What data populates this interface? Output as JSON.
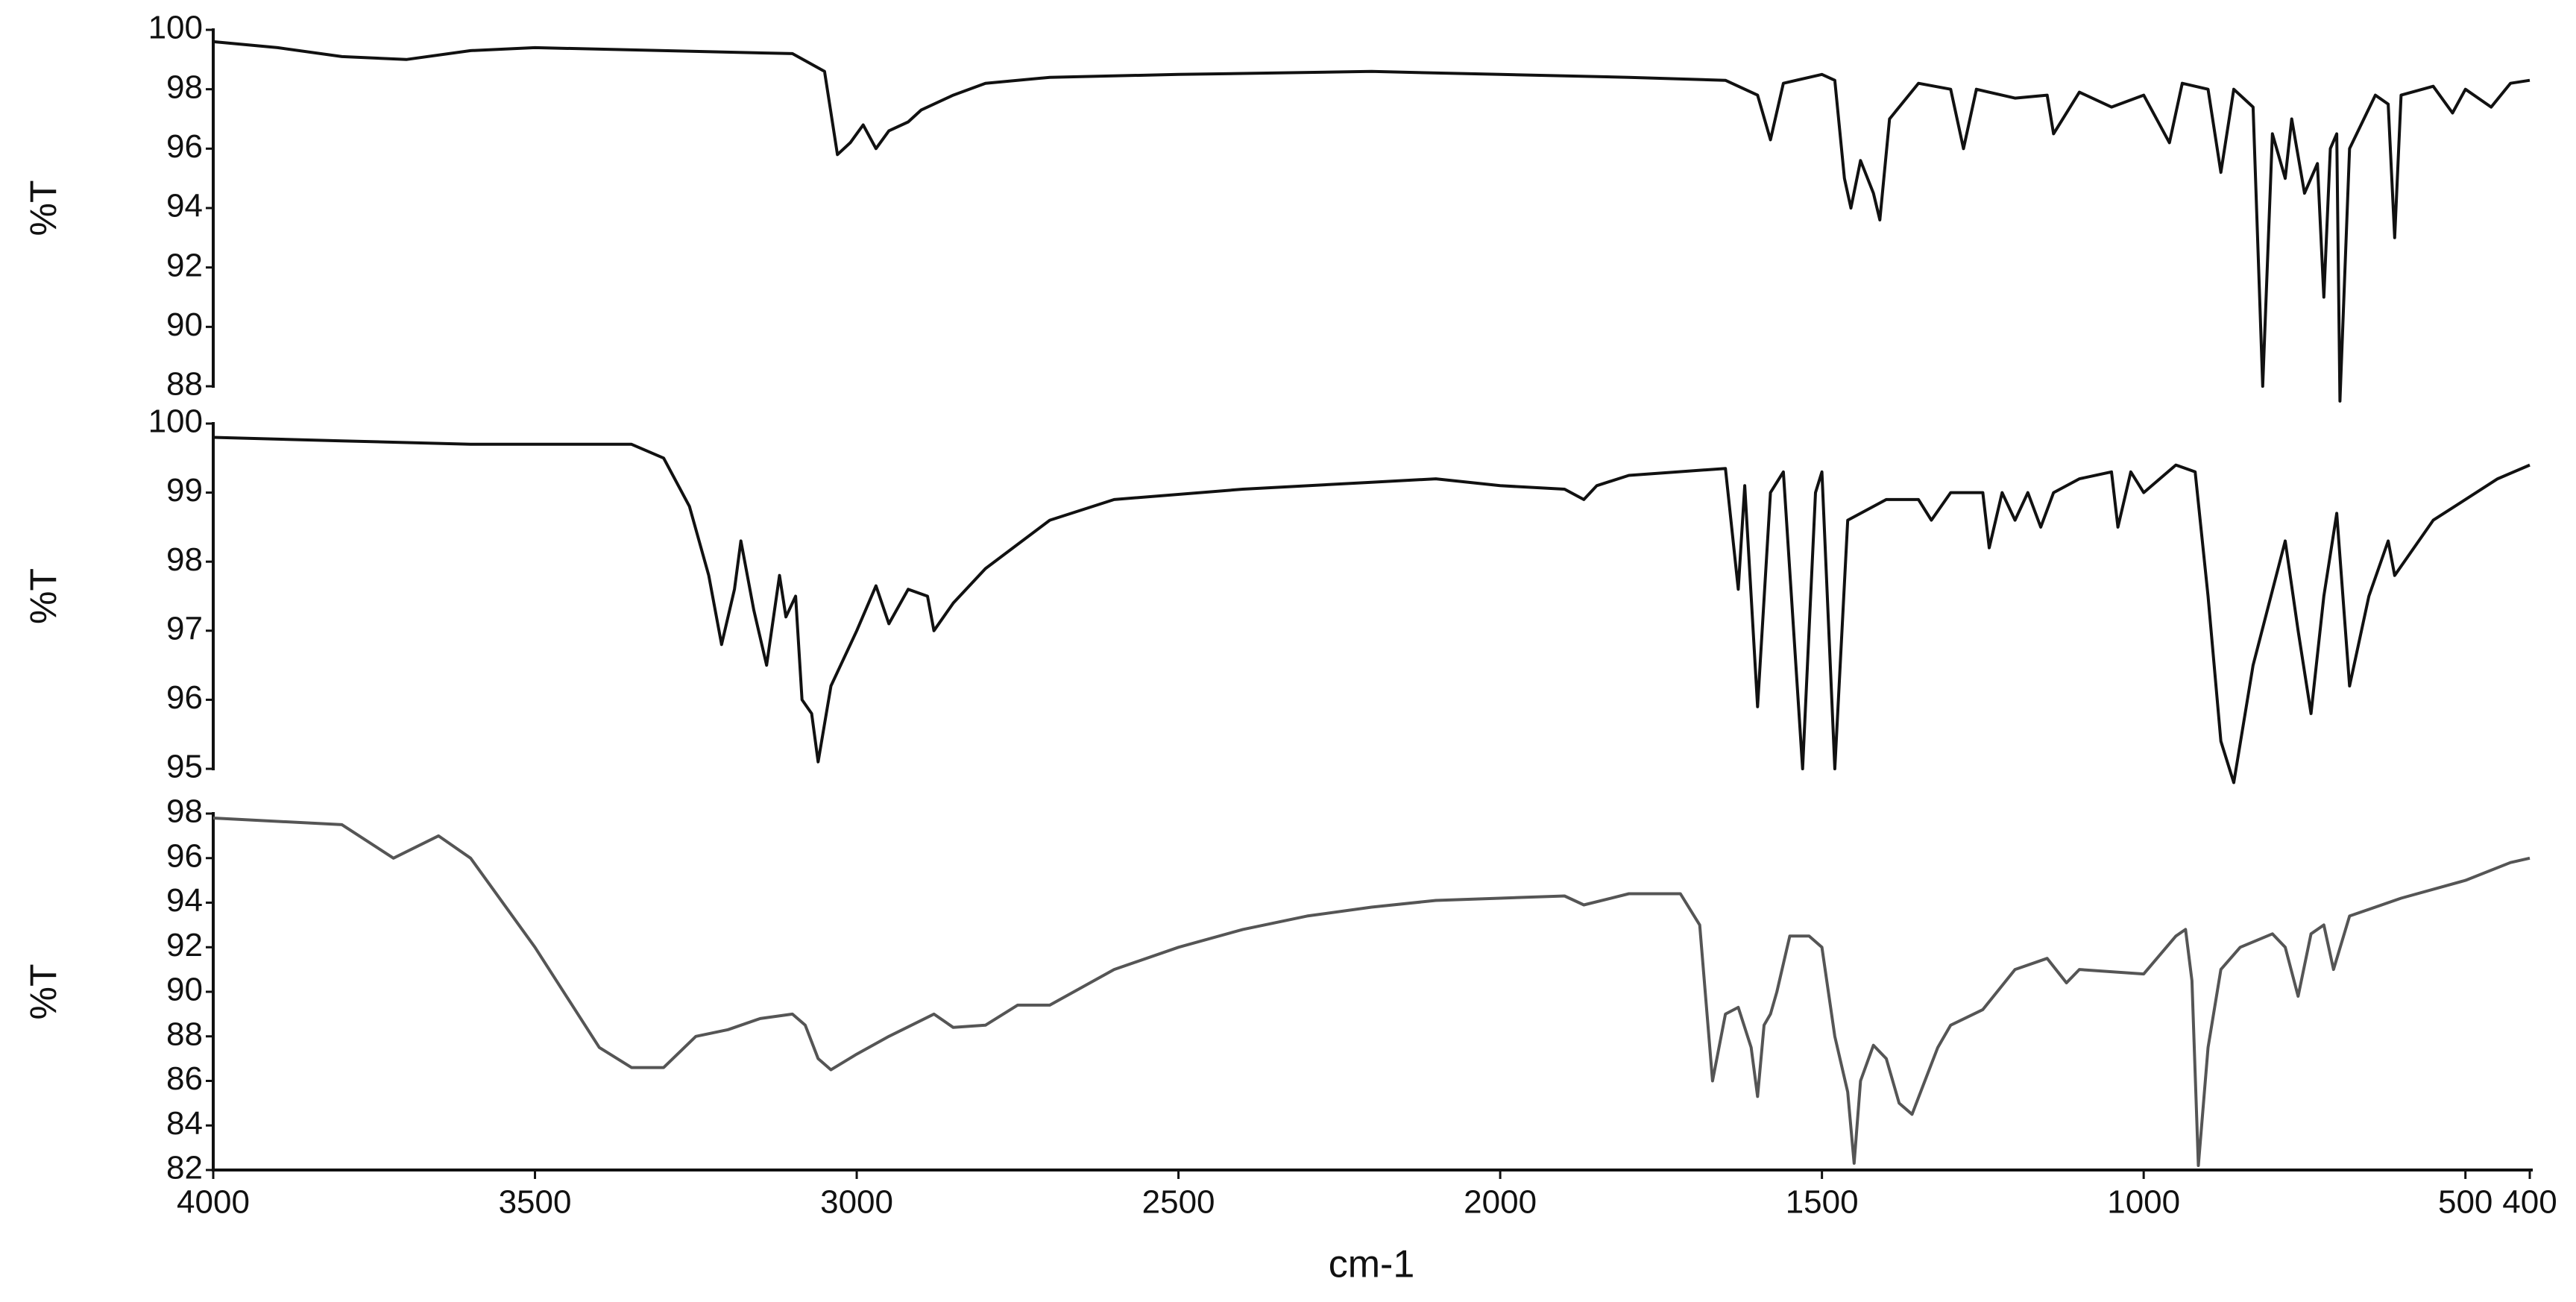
{
  "chart_data": [
    {
      "type": "line",
      "y_label": "%T",
      "color": "#111111",
      "xlim": [
        4000,
        400
      ],
      "ylim": [
        88,
        100
      ],
      "yticks": [
        88,
        90,
        92,
        94,
        96,
        98,
        100
      ],
      "x": [
        4000,
        3900,
        3800,
        3700,
        3600,
        3500,
        3300,
        3100,
        3050,
        3030,
        3010,
        2990,
        2970,
        2950,
        2920,
        2900,
        2850,
        2800,
        2700,
        2500,
        2200,
        2000,
        1800,
        1650,
        1600,
        1580,
        1560,
        1500,
        1480,
        1465,
        1455,
        1440,
        1420,
        1410,
        1395,
        1350,
        1300,
        1280,
        1260,
        1200,
        1150,
        1140,
        1100,
        1050,
        1000,
        960,
        940,
        900,
        880,
        860,
        830,
        815,
        800,
        780,
        770,
        750,
        730,
        720,
        710,
        700,
        695,
        680,
        640,
        620,
        610,
        600,
        550,
        520,
        500,
        460,
        430,
        400
      ],
      "values": [
        99.6,
        99.4,
        99.1,
        99.0,
        99.3,
        99.4,
        99.3,
        99.2,
        98.6,
        95.8,
        96.2,
        96.8,
        96.0,
        96.6,
        96.9,
        97.3,
        97.8,
        98.2,
        98.4,
        98.5,
        98.6,
        98.5,
        98.4,
        98.3,
        97.8,
        96.3,
        98.2,
        98.5,
        98.3,
        95.0,
        94.0,
        95.6,
        94.5,
        93.6,
        97.0,
        98.2,
        98.0,
        96.0,
        98.0,
        97.7,
        97.8,
        96.5,
        97.9,
        97.4,
        97.8,
        96.2,
        98.2,
        98.0,
        95.2,
        98.0,
        97.4,
        88.0,
        96.5,
        95.0,
        97.0,
        94.5,
        95.5,
        91.0,
        96.0,
        96.5,
        87.5,
        96.0,
        97.8,
        97.5,
        93.0,
        97.8,
        98.1,
        97.2,
        98.0,
        97.4,
        98.2,
        98.3
      ]
    },
    {
      "type": "line",
      "y_label": "%T",
      "color": "#111111",
      "xlim": [
        4000,
        400
      ],
      "ylim": [
        95,
        100
      ],
      "yticks": [
        95,
        96,
        97,
        98,
        99,
        100
      ],
      "x": [
        4000,
        3800,
        3600,
        3350,
        3300,
        3260,
        3230,
        3210,
        3190,
        3180,
        3160,
        3140,
        3120,
        3110,
        3095,
        3085,
        3070,
        3060,
        3040,
        3000,
        2970,
        2950,
        2920,
        2890,
        2880,
        2850,
        2800,
        2700,
        2600,
        2400,
        2200,
        2100,
        2000,
        1900,
        1870,
        1850,
        1800,
        1650,
        1630,
        1620,
        1600,
        1580,
        1560,
        1530,
        1510,
        1500,
        1480,
        1460,
        1400,
        1350,
        1330,
        1300,
        1250,
        1240,
        1220,
        1200,
        1180,
        1160,
        1140,
        1100,
        1050,
        1040,
        1020,
        1000,
        950,
        920,
        900,
        880,
        860,
        830,
        780,
        760,
        740,
        720,
        700,
        680,
        650,
        620,
        610,
        550,
        450,
        400
      ],
      "values": [
        99.8,
        99.75,
        99.7,
        99.7,
        99.5,
        98.8,
        97.8,
        96.8,
        97.6,
        98.3,
        97.3,
        96.5,
        97.8,
        97.2,
        97.5,
        96.0,
        95.8,
        95.1,
        96.2,
        97.0,
        97.65,
        97.1,
        97.6,
        97.5,
        97.0,
        97.4,
        97.9,
        98.6,
        98.9,
        99.05,
        99.15,
        99.2,
        99.1,
        99.05,
        98.9,
        99.1,
        99.25,
        99.35,
        97.6,
        99.1,
        95.9,
        99.0,
        99.3,
        95.0,
        99.0,
        99.3,
        95.0,
        98.6,
        98.9,
        98.9,
        98.6,
        99.0,
        99.0,
        98.2,
        99.0,
        98.6,
        99.0,
        98.5,
        99.0,
        99.2,
        99.3,
        98.5,
        99.3,
        99.0,
        99.4,
        99.3,
        97.5,
        95.4,
        94.8,
        96.5,
        98.3,
        97.0,
        95.8,
        97.5,
        98.7,
        96.2,
        97.5,
        98.3,
        97.8,
        98.6,
        99.2,
        99.4
      ]
    },
    {
      "type": "line",
      "y_label": "%T",
      "x_label": "cm-1",
      "color": "#555555",
      "xlim": [
        4000,
        400
      ],
      "ylim": [
        82,
        98
      ],
      "yticks": [
        82,
        84,
        86,
        88,
        90,
        92,
        94,
        96,
        98
      ],
      "xticks": [
        4000,
        3500,
        3000,
        2500,
        2000,
        1500,
        1000,
        500,
        400
      ],
      "x": [
        4000,
        3800,
        3720,
        3650,
        3600,
        3500,
        3400,
        3350,
        3300,
        3250,
        3200,
        3150,
        3100,
        3080,
        3060,
        3040,
        3000,
        2950,
        2880,
        2850,
        2800,
        2750,
        2700,
        2600,
        2500,
        2400,
        2300,
        2200,
        2100,
        2000,
        1900,
        1870,
        1800,
        1720,
        1690,
        1670,
        1650,
        1630,
        1610,
        1600,
        1590,
        1580,
        1570,
        1550,
        1520,
        1500,
        1480,
        1460,
        1450,
        1440,
        1420,
        1400,
        1380,
        1360,
        1340,
        1320,
        1300,
        1250,
        1200,
        1150,
        1120,
        1100,
        1000,
        950,
        935,
        925,
        915,
        900,
        880,
        850,
        800,
        780,
        760,
        740,
        720,
        705,
        680,
        600,
        500,
        430,
        400
      ],
      "values": [
        97.8,
        97.5,
        96.0,
        97.0,
        96.0,
        92.0,
        87.5,
        86.6,
        86.6,
        88.0,
        88.3,
        88.8,
        89.0,
        88.5,
        87.0,
        86.5,
        87.2,
        88.0,
        89.0,
        88.4,
        88.5,
        89.4,
        89.4,
        91.0,
        92.0,
        92.8,
        93.4,
        93.8,
        94.1,
        94.2,
        94.3,
        93.9,
        94.4,
        94.4,
        93.0,
        86.0,
        89.0,
        89.3,
        87.5,
        85.3,
        88.5,
        89.0,
        90.0,
        92.5,
        92.5,
        92.0,
        88.0,
        85.5,
        82.3,
        86.0,
        87.6,
        87.0,
        85.0,
        84.5,
        86.0,
        87.5,
        88.5,
        89.2,
        91.0,
        91.5,
        90.4,
        91.0,
        90.8,
        92.5,
        92.8,
        90.5,
        82.2,
        87.5,
        91.0,
        92.0,
        92.6,
        92.0,
        89.8,
        92.6,
        93.0,
        91.0,
        93.4,
        94.2,
        95.0,
        95.8,
        96.0
      ]
    }
  ]
}
